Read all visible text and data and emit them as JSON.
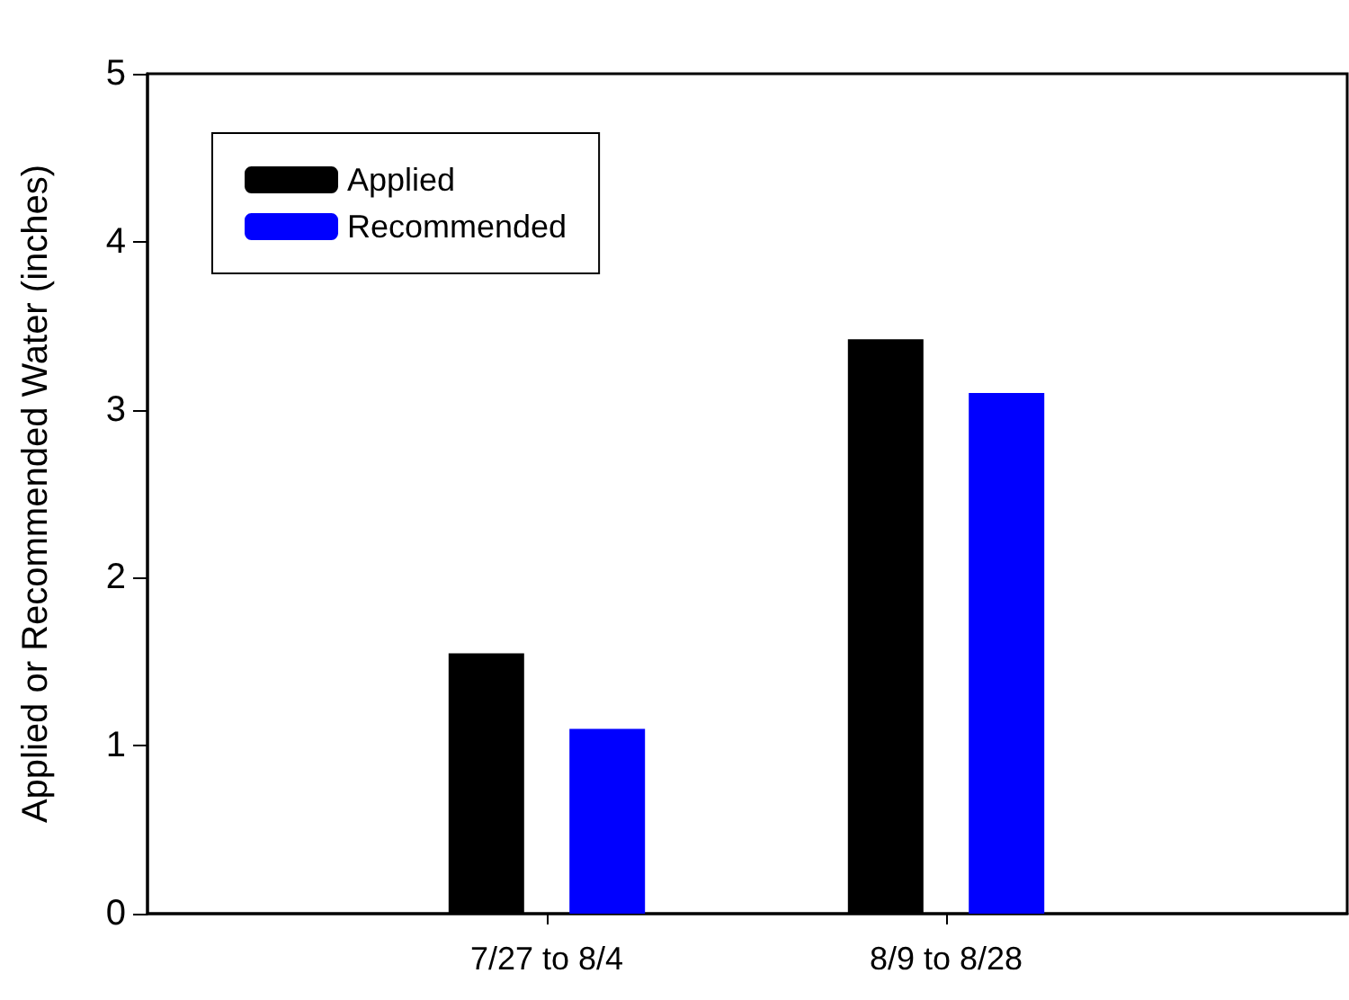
{
  "chart_data": {
    "type": "bar",
    "ylabel": "Applied or Recommended Water (inches)",
    "categories": [
      "7/27 to 8/4",
      "8/9 to 8/28"
    ],
    "series": [
      {
        "name": "Applied",
        "color": "#000000",
        "values": [
          1.55,
          3.42
        ]
      },
      {
        "name": "Recommended",
        "color": "#0000ff",
        "values": [
          1.1,
          3.1
        ]
      }
    ],
    "ylim": [
      0,
      5
    ],
    "yticks": [
      0,
      1,
      2,
      3,
      4,
      5
    ],
    "grid": false,
    "legend": "top left"
  }
}
